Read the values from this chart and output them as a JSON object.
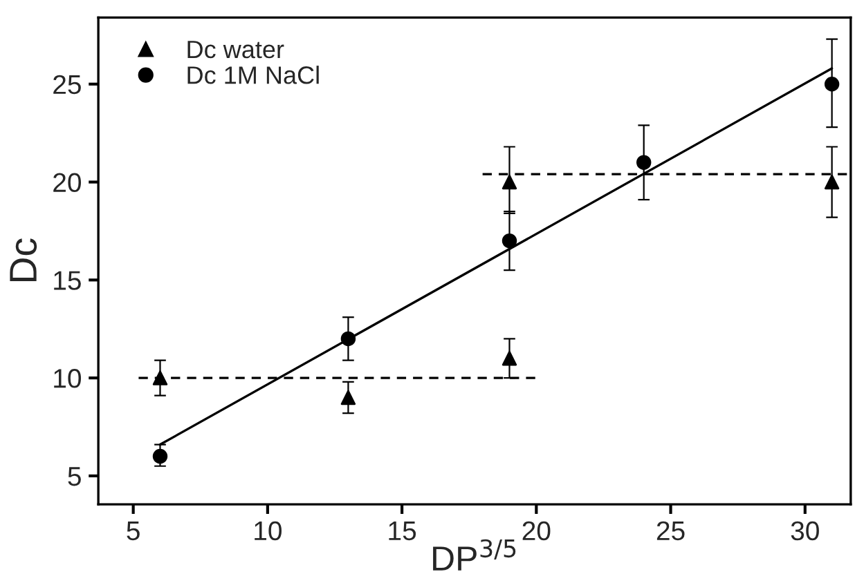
{
  "chart_data": {
    "type": "scatter",
    "xlabel": "DP$^{3/5}$",
    "ylabel": "Dc",
    "xlim": [
      3.7,
      31.7
    ],
    "ylim": [
      3.55,
      28.4
    ],
    "xticks": [
      5,
      10,
      15,
      20,
      25,
      30
    ],
    "yticks": [
      5,
      10,
      15,
      20,
      25
    ],
    "grid": false,
    "legend": "top left",
    "series": [
      {
        "name": "Dc water",
        "marker": "triangle",
        "color": "#000000",
        "x": [
          6,
          13,
          19,
          19,
          31
        ],
        "values": [
          10,
          9,
          11,
          20,
          20
        ],
        "errors": [
          [
            9.1,
            10.9
          ],
          [
            8.2,
            9.8
          ],
          [
            10,
            12
          ],
          [
            18.4,
            21.8
          ],
          [
            18.2,
            21.8
          ]
        ]
      },
      {
        "name": "Dc 1M NaCl",
        "marker": "circle",
        "color": "#000000",
        "x": [
          6,
          13,
          19,
          24,
          31
        ],
        "values": [
          6,
          12,
          17,
          21,
          25
        ],
        "errors": [
          [
            5.5,
            6.6
          ],
          [
            10.9,
            13.1
          ],
          [
            15.5,
            18.5
          ],
          [
            19.1,
            22.9
          ],
          [
            22.8,
            27.3
          ]
        ]
      },
      {
        "type": "line",
        "line_style": "solid",
        "color": "#000000",
        "x": [
          6,
          31
        ],
        "values": [
          6.6,
          25.8
        ]
      },
      {
        "type": "line",
        "line_style": "dashed",
        "color": "#000000",
        "x": [
          5.2,
          20
        ],
        "values": [
          10,
          10
        ]
      },
      {
        "type": "line",
        "line_style": "dashed",
        "color": "#000000",
        "x": [
          18,
          31.7
        ],
        "values": [
          20.4,
          20.4
        ]
      }
    ]
  }
}
